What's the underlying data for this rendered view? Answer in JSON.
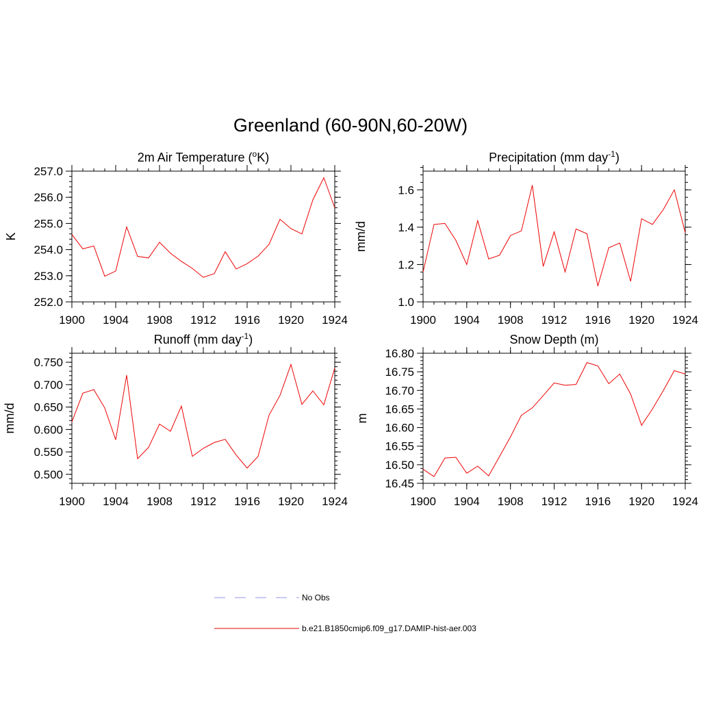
{
  "title": "Greenland (60-90N,60-20W)",
  "legend": [
    {
      "label": "No Obs",
      "color": "#aaaaee",
      "dash": true
    },
    {
      "label": "b.e21.B1850cmip6.f09_g17.DAMIP-hist-aer.003",
      "color": "#ee0000",
      "dash": false
    }
  ],
  "line_color": "#ee0000",
  "chart_data": [
    {
      "type": "line",
      "title": "2m Air Temperature (",
      "title_sup": "o",
      "title_after": "K)",
      "ylabel": "K",
      "ylim": [
        252.0,
        257.0
      ],
      "yticks": [
        "252.0",
        "253.0",
        "254.0",
        "255.0",
        "256.0",
        "257.0"
      ],
      "yminor": 0.2,
      "xlim": [
        1900,
        1924
      ],
      "xticks": [
        "1900",
        "1904",
        "1908",
        "1912",
        "1916",
        "1920",
        "1924"
      ],
      "x": [
        1900,
        1901,
        1902,
        1903,
        1904,
        1905,
        1906,
        1907,
        1908,
        1909,
        1910,
        1911,
        1912,
        1913,
        1914,
        1915,
        1916,
        1917,
        1918,
        1919,
        1920,
        1921,
        1922,
        1923,
        1924
      ],
      "values": [
        254.58,
        254.03,
        254.14,
        252.98,
        253.18,
        254.87,
        253.74,
        253.68,
        254.28,
        253.86,
        253.55,
        253.28,
        252.94,
        253.08,
        253.92,
        253.26,
        253.46,
        253.75,
        254.2,
        255.16,
        254.8,
        254.6,
        255.9,
        256.75,
        255.6
      ]
    },
    {
      "type": "line",
      "title": "Precipitation (mm day",
      "title_sup": "-1",
      "title_after": ")",
      "ylabel": "mm/d",
      "ylim": [
        1.0,
        1.7
      ],
      "yticks": [
        "1.0",
        "1.2",
        "1.4",
        "1.6"
      ],
      "yminor": 0.04,
      "xlim": [
        1900,
        1924
      ],
      "xticks": [
        "1900",
        "1904",
        "1908",
        "1912",
        "1916",
        "1920",
        "1924"
      ],
      "x": [
        1900,
        1901,
        1902,
        1903,
        1904,
        1905,
        1906,
        1907,
        1908,
        1909,
        1910,
        1911,
        1912,
        1913,
        1914,
        1915,
        1916,
        1917,
        1918,
        1919,
        1920,
        1921,
        1922,
        1923,
        1924
      ],
      "values": [
        1.16,
        1.415,
        1.42,
        1.33,
        1.2,
        1.435,
        1.23,
        1.25,
        1.355,
        1.38,
        1.625,
        1.19,
        1.375,
        1.16,
        1.39,
        1.365,
        1.085,
        1.29,
        1.315,
        1.11,
        1.445,
        1.415,
        1.495,
        1.6,
        1.37
      ]
    },
    {
      "type": "line",
      "title": "Runoff (mm day",
      "title_sup": "-1",
      "title_after": ")",
      "ylabel": "mm/d",
      "ylim": [
        0.48,
        0.77
      ],
      "yticks": [
        "0.500",
        "0.550",
        "0.600",
        "0.650",
        "0.700",
        "0.750"
      ],
      "yminor": 0.01,
      "xlim": [
        1900,
        1924
      ],
      "xticks": [
        "1900",
        "1904",
        "1908",
        "1912",
        "1916",
        "1920",
        "1924"
      ],
      "x": [
        1900,
        1901,
        1902,
        1903,
        1904,
        1905,
        1906,
        1907,
        1908,
        1909,
        1910,
        1911,
        1912,
        1913,
        1914,
        1915,
        1916,
        1917,
        1918,
        1919,
        1920,
        1921,
        1922,
        1923,
        1924
      ],
      "values": [
        0.617,
        0.681,
        0.689,
        0.648,
        0.577,
        0.721,
        0.535,
        0.56,
        0.612,
        0.596,
        0.652,
        0.54,
        0.558,
        0.571,
        0.578,
        0.543,
        0.514,
        0.54,
        0.632,
        0.676,
        0.745,
        0.656,
        0.686,
        0.655,
        0.737
      ]
    },
    {
      "type": "line",
      "title": "Snow Depth (m)",
      "title_sup": "",
      "title_after": "",
      "ylabel": "m",
      "ylim": [
        16.45,
        16.8
      ],
      "yticks": [
        "16.45",
        "16.50",
        "16.55",
        "16.60",
        "16.65",
        "16.70",
        "16.75",
        "16.80"
      ],
      "yminor": 0.01,
      "xlim": [
        1900,
        1924
      ],
      "xticks": [
        "1900",
        "1904",
        "1908",
        "1912",
        "1916",
        "1920",
        "1924"
      ],
      "x": [
        1900,
        1901,
        1902,
        1903,
        1904,
        1905,
        1906,
        1907,
        1908,
        1909,
        1910,
        1911,
        1912,
        1913,
        1914,
        1915,
        1916,
        1917,
        1918,
        1919,
        1920,
        1921,
        1922,
        1923,
        1924
      ],
      "values": [
        16.488,
        16.468,
        16.518,
        16.52,
        16.477,
        16.496,
        16.47,
        16.522,
        16.575,
        16.633,
        16.653,
        16.686,
        16.72,
        16.714,
        16.716,
        16.775,
        16.766,
        16.718,
        16.744,
        16.69,
        16.606,
        16.65,
        16.7,
        16.753,
        16.744
      ]
    }
  ]
}
